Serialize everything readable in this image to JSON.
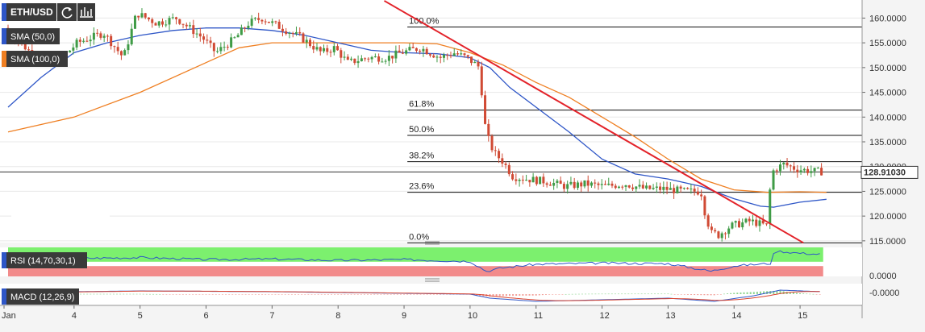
{
  "symbol": "ETH/USD",
  "toolbar": {
    "refresh_icon": "refresh-icon",
    "chart_icon": "bar-chart-icon"
  },
  "indicators": {
    "sma50": {
      "label": "SMA (50,0)",
      "color": "#2e56c7"
    },
    "sma100": {
      "label": "SMA (100,0)",
      "color": "#ef7f22"
    },
    "rsi": {
      "label": "RSI (14,70,30,1)",
      "color": "#2e56c7",
      "overbought_color": "#7cf06e",
      "oversold_color": "#f28b8b"
    },
    "macd": {
      "label": "MACD (12,26,9)",
      "line_color": "#2e56c7",
      "signal_color": "#d9432e"
    }
  },
  "colors": {
    "bull": "#3f9b46",
    "bear": "#d04a34",
    "trendline": "#e3232a"
  },
  "current_price": "128.91030",
  "rsi_axis_label": "0.0000",
  "macd_axis_label": "-0.0000",
  "chart_data": {
    "type": "candlestick",
    "y_range": [
      114,
      163
    ],
    "y_ticks": [
      "160.0000",
      "155.0000",
      "150.0000",
      "145.0000",
      "140.0000",
      "135.0000",
      "130.0000",
      "125.0000",
      "120.0000",
      "115.0000"
    ],
    "y_tick_values": [
      160,
      155,
      150,
      145,
      140,
      135,
      130,
      125,
      120,
      115
    ],
    "x_labels": [
      "Jan",
      "4",
      "5",
      "6",
      "7",
      "8",
      "9",
      "10",
      "11",
      "12",
      "13",
      "14",
      "15"
    ],
    "x_label_days": [
      3,
      4,
      5,
      6,
      7,
      8,
      9,
      10,
      11,
      12,
      13,
      14,
      15
    ],
    "x_range_days": [
      3,
      15.5
    ],
    "fib_levels": [
      {
        "label": "100.0%",
        "price": 158.2
      },
      {
        "label": "61.8%",
        "price": 141.4
      },
      {
        "label": "50.0%",
        "price": 136.3
      },
      {
        "label": "38.2%",
        "price": 131.0
      },
      {
        "label": "23.6%",
        "price": 124.8
      },
      {
        "label": "0.0%",
        "price": 114.6
      }
    ],
    "trendline": {
      "from": {
        "day": 8.7,
        "price": 163.5
      },
      "to": {
        "day": 15.05,
        "price": 114.6
      }
    },
    "sma50_points": [
      [
        3,
        142
      ],
      [
        3.5,
        148
      ],
      [
        4,
        153
      ],
      [
        4.5,
        155
      ],
      [
        5,
        156.5
      ],
      [
        5.5,
        157.5
      ],
      [
        6,
        158
      ],
      [
        6.5,
        158
      ],
      [
        7,
        157.5
      ],
      [
        7.5,
        156.5
      ],
      [
        8,
        155
      ],
      [
        8.5,
        153.5
      ],
      [
        9,
        153
      ],
      [
        9.5,
        152.8
      ],
      [
        10,
        152
      ],
      [
        10.3,
        150
      ],
      [
        10.6,
        146
      ],
      [
        11,
        142
      ],
      [
        11.5,
        137
      ],
      [
        12,
        131.5
      ],
      [
        12.5,
        128.5
      ],
      [
        13,
        127.5
      ],
      [
        13.5,
        126
      ],
      [
        14,
        123.5
      ],
      [
        14.4,
        122
      ],
      [
        14.6,
        121.8
      ],
      [
        15,
        122.8
      ],
      [
        15.4,
        123.4
      ]
    ],
    "sma100_points": [
      [
        3,
        137
      ],
      [
        4,
        140
      ],
      [
        5,
        145
      ],
      [
        6,
        151
      ],
      [
        6.5,
        154
      ],
      [
        7,
        155
      ],
      [
        8,
        155
      ],
      [
        9,
        155
      ],
      [
        9.5,
        154.8
      ],
      [
        10,
        153
      ],
      [
        10.5,
        150.5
      ],
      [
        11,
        147
      ],
      [
        11.5,
        144
      ],
      [
        12,
        140
      ],
      [
        12.5,
        136
      ],
      [
        13,
        131.5
      ],
      [
        13.5,
        127.5
      ],
      [
        14,
        125.3
      ],
      [
        14.5,
        124.8
      ],
      [
        15,
        124.9
      ],
      [
        15.4,
        124.8
      ]
    ],
    "candle_anchors": [
      [
        3,
        158
      ],
      [
        3.4,
        153
      ],
      [
        3.8,
        151
      ],
      [
        4.1,
        155
      ],
      [
        4.5,
        157
      ],
      [
        4.8,
        152
      ],
      [
        5,
        161
      ],
      [
        5.3,
        159
      ],
      [
        5.6,
        160
      ],
      [
        6,
        156
      ],
      [
        6.2,
        153
      ],
      [
        6.5,
        156
      ],
      [
        6.7,
        159
      ],
      [
        6.9,
        160
      ],
      [
        7.2,
        158
      ],
      [
        7.5,
        156
      ],
      [
        7.8,
        153
      ],
      [
        8,
        154
      ],
      [
        8.2,
        151
      ],
      [
        8.5,
        152
      ],
      [
        8.8,
        152
      ],
      [
        9,
        153
      ],
      [
        9.3,
        154
      ],
      [
        9.6,
        152
      ],
      [
        9.8,
        153
      ],
      [
        10,
        152
      ],
      [
        10.2,
        150
      ],
      [
        10.25,
        140
      ],
      [
        10.4,
        133
      ],
      [
        10.55,
        131
      ],
      [
        10.7,
        128
      ],
      [
        10.9,
        127.5
      ],
      [
        11.2,
        127
      ],
      [
        11.5,
        126
      ],
      [
        11.8,
        126.5
      ],
      [
        12.1,
        126
      ],
      [
        12.4,
        126.5
      ],
      [
        12.7,
        125.5
      ],
      [
        13,
        125.5
      ],
      [
        13.3,
        125
      ],
      [
        13.55,
        125
      ],
      [
        13.65,
        118
      ],
      [
        13.8,
        116
      ],
      [
        14,
        118
      ],
      [
        14.3,
        119
      ],
      [
        14.55,
        118
      ],
      [
        14.62,
        129
      ],
      [
        14.8,
        130.5
      ],
      [
        15,
        129.5
      ],
      [
        15.3,
        129
      ]
    ],
    "rsi_range": [
      0,
      100
    ],
    "rsi_bands": {
      "overbought": 70,
      "oversold": 30
    },
    "rsi_anchors": [
      [
        3,
        60
      ],
      [
        4,
        62
      ],
      [
        5,
        65
      ],
      [
        6,
        58
      ],
      [
        7,
        60
      ],
      [
        8,
        55
      ],
      [
        9,
        58
      ],
      [
        10,
        52
      ],
      [
        10.25,
        18
      ],
      [
        10.5,
        30
      ],
      [
        11,
        42
      ],
      [
        12,
        46
      ],
      [
        13,
        44
      ],
      [
        13.65,
        18
      ],
      [
        14,
        36
      ],
      [
        14.55,
        45
      ],
      [
        14.62,
        88
      ],
      [
        15,
        80
      ],
      [
        15.35,
        76
      ]
    ],
    "macd_anchors": [
      [
        3,
        0.2
      ],
      [
        5,
        0.4
      ],
      [
        7,
        0.3
      ],
      [
        9,
        0.1
      ],
      [
        10,
        0
      ],
      [
        10.3,
        -0.5
      ],
      [
        11,
        -0.9
      ],
      [
        12,
        -0.7
      ],
      [
        13,
        -0.5
      ],
      [
        13.7,
        -0.9
      ],
      [
        14.3,
        -0.2
      ],
      [
        14.7,
        0.5
      ],
      [
        15.35,
        0.3
      ]
    ]
  }
}
